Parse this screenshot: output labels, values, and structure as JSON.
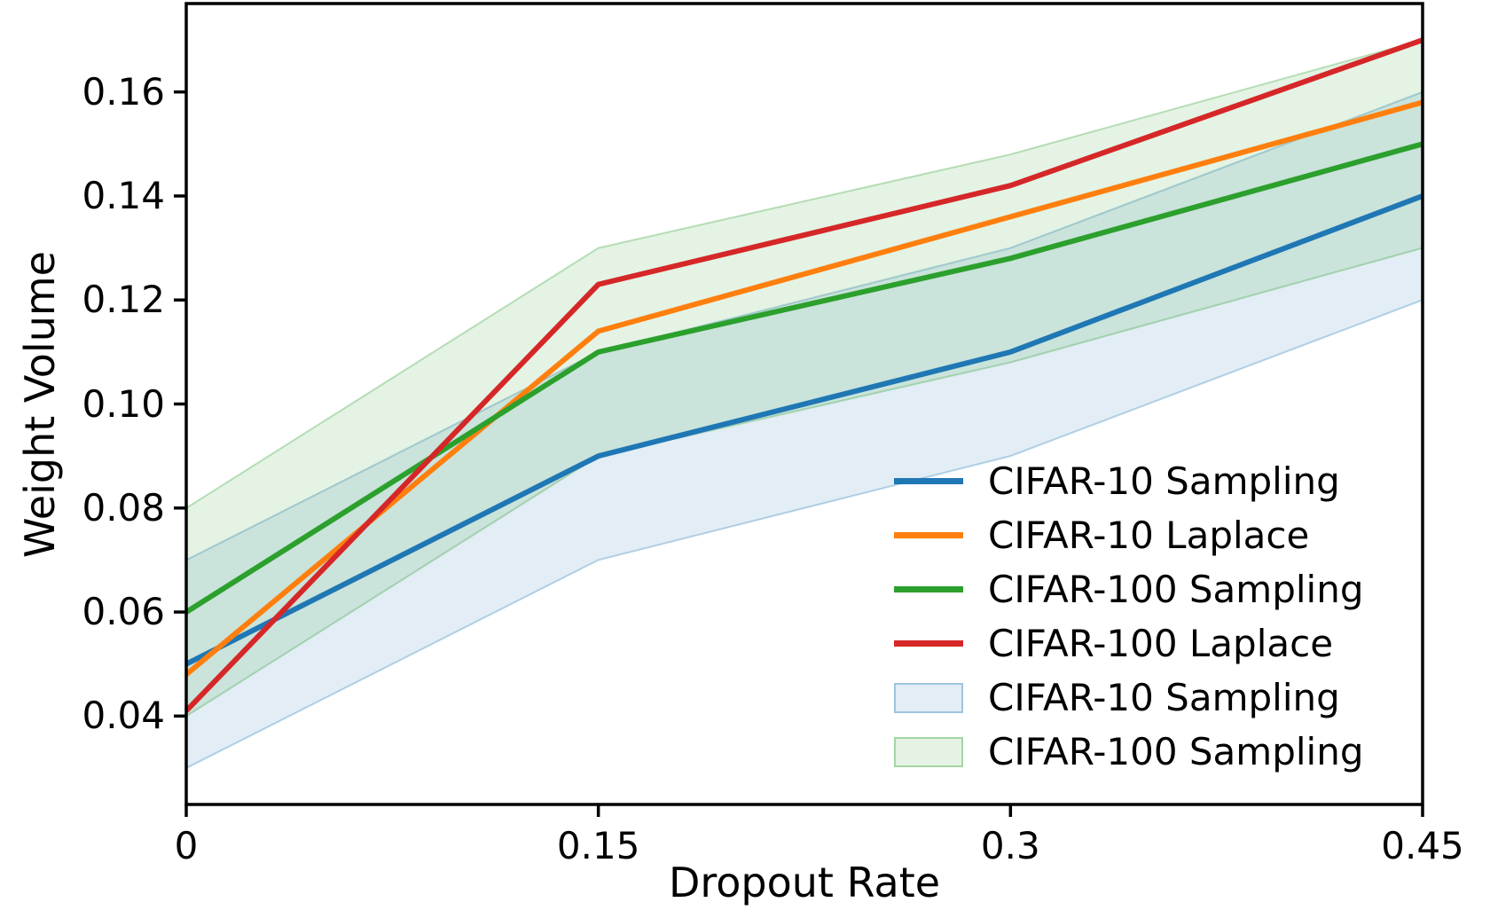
{
  "figure": {
    "background": "#ffffff",
    "frame_color": "#000000"
  },
  "chart_data": {
    "type": "line",
    "title": "",
    "xlabel": "Dropout Rate",
    "ylabel": "Weight Volume",
    "grid": false,
    "x": [
      0,
      0.15,
      0.3,
      0.45
    ],
    "xlim": [
      0,
      0.45
    ],
    "ylim": [
      0.023,
      0.177
    ],
    "x_ticks": {
      "values": [
        0,
        0.15,
        0.3,
        0.45
      ],
      "labels": [
        "0",
        "0.15",
        "0.3",
        "0.45"
      ]
    },
    "y_ticks": {
      "values": [
        0.04,
        0.06,
        0.08,
        0.1,
        0.12,
        0.14,
        0.16
      ],
      "labels": [
        "0.04",
        "0.06",
        "0.08",
        "0.10",
        "0.12",
        "0.14",
        "0.16"
      ]
    },
    "series": [
      {
        "name": "CIFAR-10 Sampling",
        "color": "#1f77b4",
        "values": [
          0.05,
          0.09,
          0.11,
          0.14
        ]
      },
      {
        "name": "CIFAR-10 Laplace",
        "color": "#ff7f0e",
        "values": [
          0.048,
          0.114,
          0.136,
          0.158
        ]
      },
      {
        "name": "CIFAR-100 Sampling",
        "color": "#2ca02c",
        "values": [
          0.06,
          0.11,
          0.128,
          0.15
        ]
      },
      {
        "name": "CIFAR-100 Laplace",
        "color": "#d62728",
        "values": [
          0.041,
          0.123,
          0.142,
          0.17
        ]
      }
    ],
    "bands": [
      {
        "name": "CIFAR-10 Sampling",
        "color": "#1f77b4",
        "lower": [
          0.03,
          0.07,
          0.09,
          0.12
        ],
        "upper": [
          0.07,
          0.11,
          0.13,
          0.16
        ]
      },
      {
        "name": "CIFAR-100 Sampling",
        "color": "#2ca02c",
        "lower": [
          0.04,
          0.09,
          0.108,
          0.13
        ],
        "upper": [
          0.08,
          0.13,
          0.148,
          0.17
        ]
      }
    ],
    "legend": {
      "position": "lower right",
      "entries": [
        {
          "label": "CIFAR-10 Sampling",
          "type": "line",
          "color": "#1f77b4"
        },
        {
          "label": "CIFAR-10 Laplace",
          "type": "line",
          "color": "#ff7f0e"
        },
        {
          "label": "CIFAR-100 Sampling",
          "type": "line",
          "color": "#2ca02c"
        },
        {
          "label": "CIFAR-100 Laplace",
          "type": "line",
          "color": "#d62728"
        },
        {
          "label": "CIFAR-10 Sampling",
          "type": "patch",
          "color": "#1f77b4"
        },
        {
          "label": "CIFAR-100 Sampling",
          "type": "patch",
          "color": "#2ca02c"
        }
      ]
    }
  }
}
